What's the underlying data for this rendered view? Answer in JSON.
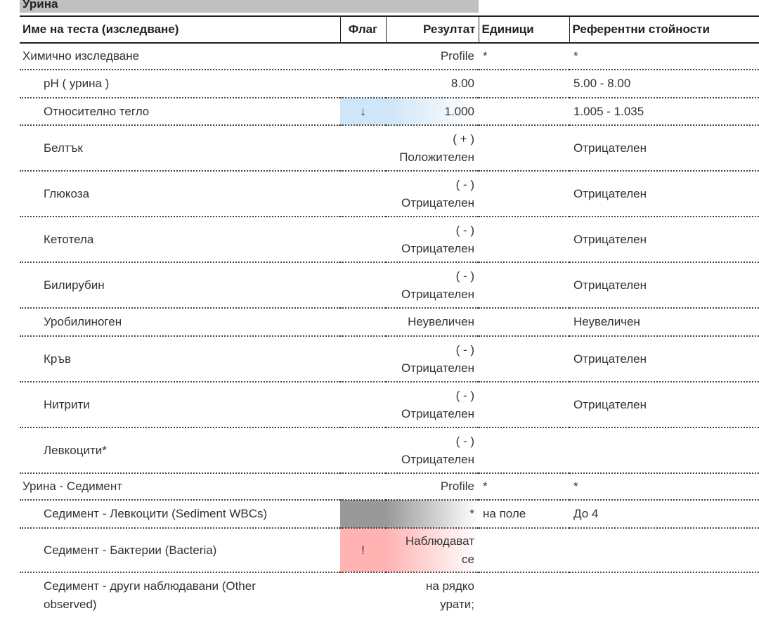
{
  "section_title": "Урина",
  "columns": {
    "name": "Име на теста (изследване)",
    "flag": "Флаг",
    "result": "Резултат",
    "units": "Единици",
    "ref": "Референтни стойности"
  },
  "colors": {
    "low": "#cfe5f8",
    "abnormal": "#ffb3b3",
    "unknown": "#999999"
  },
  "rows": [
    {
      "name": "Химично изследване",
      "result": "Profile",
      "units": "*",
      "ref": "*",
      "group": true,
      "h": 38
    },
    {
      "name": "pH ( урина )",
      "result": "8.00",
      "units": "",
      "ref": "5.00 - 8.00",
      "h": 40
    },
    {
      "name": "Относително тегло",
      "flag": "↓",
      "flag_type": "low",
      "result": "1.000",
      "units": "",
      "ref": "1.005 - 1.035",
      "h": 39
    },
    {
      "name": "Белтък",
      "result": "( + )\nПоложителен",
      "ref": "Отрицателен",
      "h": 65
    },
    {
      "name": "Глюкоза",
      "result": "( - )\nОтрицателен",
      "ref": "Отрицателен",
      "h": 65
    },
    {
      "name": "Кетотела",
      "result": "( - )\nОтрицателен",
      "ref": "Отрицателен",
      "h": 65
    },
    {
      "name": "Билирубин",
      "result": "( - )\nОтрицателен",
      "ref": "Отрицателен",
      "h": 65
    },
    {
      "name": "Уробилиноген",
      "result": "Неувеличен",
      "ref": "Неувеличен",
      "h": 40
    },
    {
      "name": "Кръв",
      "result": "( - )\nОтрицателен",
      "ref": "Отрицателен",
      "h": 65
    },
    {
      "name": "Нитрити",
      "result": "( - )\nОтрицателен",
      "ref": "Отрицателен",
      "h": 65
    },
    {
      "name": "Левкоцити*",
      "result": "( - )\nОтрицателен",
      "ref": "",
      "h": 65
    },
    {
      "name": "Урина - Седимент",
      "result": "Profile",
      "units": "*",
      "ref": "*",
      "group": true,
      "h": 38
    },
    {
      "name": "Седимент - Левкоцити (Sediment WBCs)",
      "flag": "",
      "flag_type": "unknown",
      "result": "*",
      "units": "на поле",
      "ref": "До 4",
      "h": 40
    },
    {
      "name": "Седимент - Бактерии (Bacteria)",
      "flag": "!",
      "flag_type": "abnormal",
      "result": "Наблюдават\nсе",
      "units": "",
      "ref": "",
      "h": 63
    },
    {
      "name": "Седимент - други наблюдавани (Other\nobserved)",
      "result": "на рядко\nурати;",
      "units": "",
      "ref": "",
      "h": 64,
      "nobottom": true
    }
  ]
}
